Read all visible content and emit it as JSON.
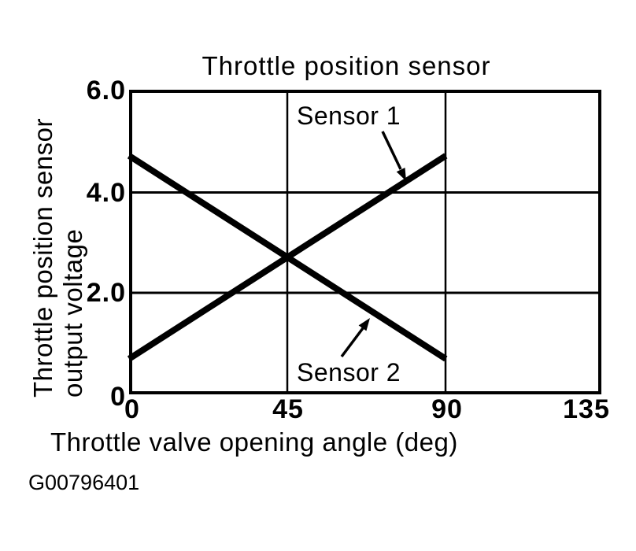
{
  "figure_code": "G00796401",
  "chart_data": {
    "type": "line",
    "title": "Throttle position sensor",
    "xlabel": "Throttle valve opening angle (deg)",
    "ylabel": "Throttle position sensor output voltage",
    "ylabel_lines": [
      "Throttle position sensor",
      "output voltage"
    ],
    "xlim": [
      0,
      135
    ],
    "ylim": [
      0,
      6.0
    ],
    "x_ticks": [
      "0",
      "45",
      "90",
      "135"
    ],
    "y_ticks": [
      "6.0",
      "4.0",
      "2.0",
      "0"
    ],
    "grid": true,
    "legend_position": "inline-annotations-with-arrows",
    "line_color": "#000000",
    "background_color": "#ffffff",
    "series": [
      {
        "name": "Sensor 1",
        "x": [
          0,
          90
        ],
        "y": [
          0.7,
          4.7
        ]
      },
      {
        "name": "Sensor 2",
        "x": [
          0,
          90
        ],
        "y": [
          4.7,
          0.7
        ]
      }
    ]
  }
}
